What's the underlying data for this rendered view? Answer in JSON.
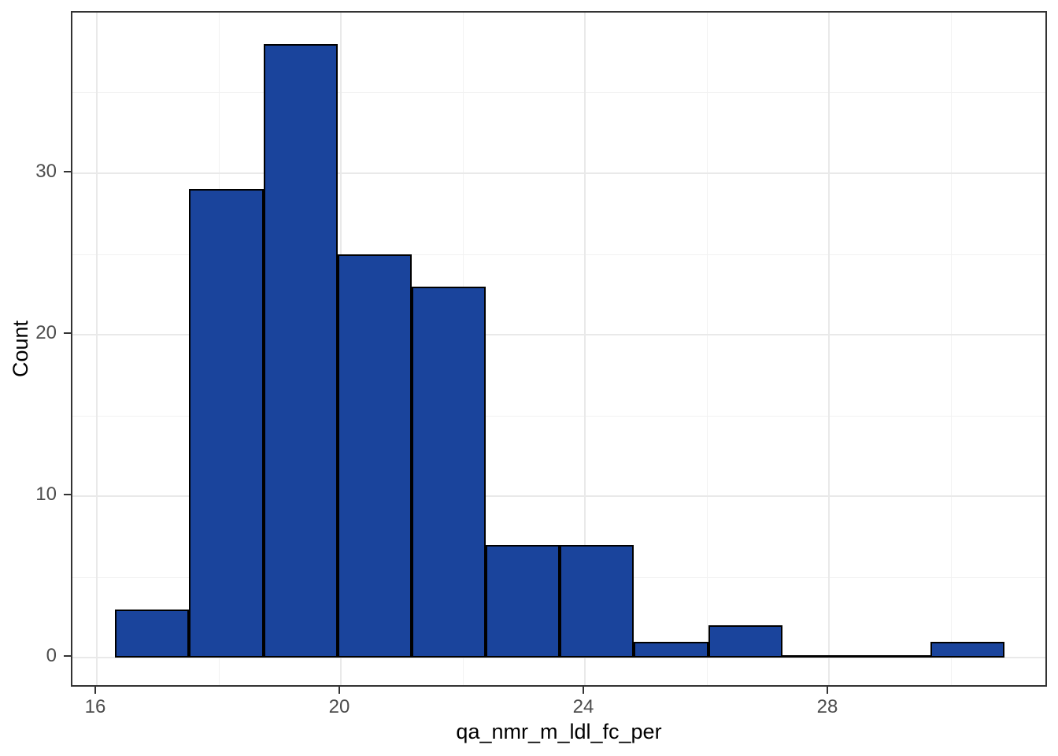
{
  "chart_data": {
    "type": "histogram",
    "title": "",
    "xlabel": "qa_nmr_m_ldl_fc_per",
    "ylabel": "Count",
    "bins": {
      "start": 16.3,
      "width": 1.215,
      "count": 12
    },
    "counts": [
      3,
      29,
      38,
      25,
      23,
      7,
      7,
      1,
      2,
      0,
      0,
      1
    ],
    "total_observations": 136,
    "x_major_ticks": [
      16,
      20,
      24,
      28
    ],
    "x_minor_gridlines": [
      18,
      22,
      26,
      30
    ],
    "y_major_ticks": [
      0,
      10,
      20,
      30
    ],
    "y_minor_gridlines": [
      5,
      15,
      25,
      35
    ],
    "xlim": [
      15.6,
      31.6
    ],
    "ylim": [
      -1.9,
      39.95
    ],
    "grid": true,
    "legend": false,
    "style": {
      "bar_fill": "#1A449C",
      "bar_stroke": "#000000",
      "panel_border": "#333333",
      "grid_major_color": "#E9E9E9",
      "grid_minor_color": "#F2F2F2",
      "tick_color": "#333333",
      "tick_label_color": "#4D4D4D",
      "axis_title_color": "#000000",
      "background": "#FFFFFF"
    }
  }
}
